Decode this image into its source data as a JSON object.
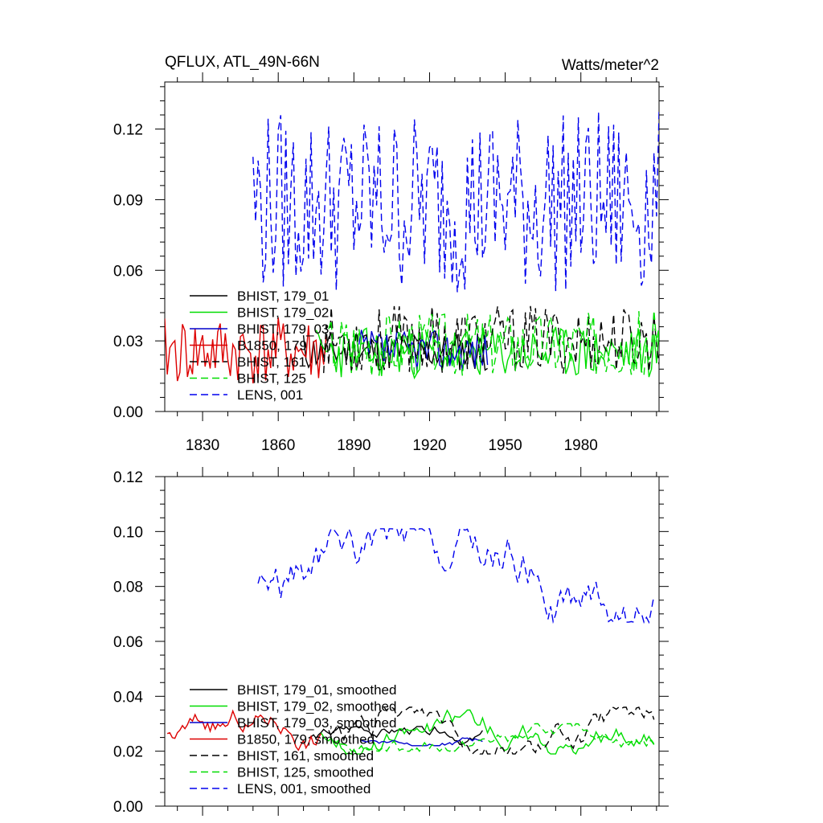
{
  "chart_data": [
    {
      "type": "line",
      "title": "QFLUX, ATL_49N-66N",
      "units": "Watts/meter^2",
      "xlabel": "",
      "ylabel": "",
      "xlim": [
        1815,
        2011
      ],
      "ylim": [
        0.0,
        0.14
      ],
      "xticks": [
        1830,
        1860,
        1890,
        1920,
        1950,
        1980
      ],
      "xtick_labels": [
        "1830",
        "1860",
        "1890",
        "1920",
        "1950",
        "1980"
      ],
      "yticks": [
        0.0,
        0.03,
        0.06,
        0.09,
        0.12
      ],
      "ytick_labels": [
        "0.00",
        "0.03",
        "0.06",
        "0.09",
        "0.12"
      ],
      "grid": false,
      "legend_position": "bottom-left",
      "series": [
        {
          "name": "BHIST, 179_01",
          "color": "#000000",
          "dash": "solid",
          "x_start": 1870,
          "x_end": 1943,
          "min": 0.017,
          "max": 0.034,
          "seed": 11
        },
        {
          "name": "BHIST, 179_02",
          "color": "#00dd00",
          "dash": "solid",
          "x_start": 1875,
          "x_end": 2011,
          "min": 0.014,
          "max": 0.036,
          "seed": 23
        },
        {
          "name": "BHIST, 179_03",
          "color": "#0000cc",
          "dash": "solid",
          "x_start": 1892,
          "x_end": 1943,
          "min": 0.017,
          "max": 0.035,
          "seed": 37
        },
        {
          "name": "B1850, 179",
          "color": "#dd0000",
          "dash": "solid",
          "x_start": 1815,
          "x_end": 1879,
          "min": 0.011,
          "max": 0.04,
          "seed": 41
        },
        {
          "name": "BHIST, 161",
          "color": "#000000",
          "dash": "dashed",
          "x_start": 1878,
          "x_end": 2011,
          "min": 0.016,
          "max": 0.045,
          "seed": 53
        },
        {
          "name": "BHIST, 125",
          "color": "#00dd00",
          "dash": "dashed",
          "x_start": 1880,
          "x_end": 2011,
          "min": 0.015,
          "max": 0.043,
          "seed": 67
        },
        {
          "name": "LENS, 001",
          "color": "#0000ee",
          "dash": "dashed",
          "x_start": 1850,
          "x_end": 2011,
          "min": 0.05,
          "max": 0.128,
          "seed": 79
        }
      ]
    },
    {
      "type": "line",
      "title": "",
      "xlabel": "",
      "ylabel": "",
      "xlim": [
        1815,
        2011
      ],
      "ylim": [
        0.0,
        0.12
      ],
      "xticks": [
        1830,
        1860,
        1890,
        1920,
        1950,
        1980
      ],
      "xtick_labels": [],
      "yticks": [
        0.0,
        0.02,
        0.04,
        0.06,
        0.08,
        0.1,
        0.12
      ],
      "ytick_labels": [
        "0.00",
        "0.02",
        "0.04",
        "0.06",
        "0.08",
        "0.10",
        "0.12"
      ],
      "grid": false,
      "legend_position": "bottom-left",
      "series": [
        {
          "name": "BHIST, 179_01, smoothed",
          "color": "#000000",
          "dash": "solid",
          "x_start": 1872,
          "x_end": 1941,
          "min": 0.021,
          "max": 0.029,
          "seed": 11
        },
        {
          "name": "BHIST, 179_02, smoothed",
          "color": "#00dd00",
          "dash": "solid",
          "x_start": 1877,
          "x_end": 2009,
          "min": 0.019,
          "max": 0.035,
          "seed": 23
        },
        {
          "name": "BHIST, 179_03, smoothed",
          "color": "#0000cc",
          "dash": "solid",
          "x_start": 1893,
          "x_end": 1941,
          "min": 0.022,
          "max": 0.027,
          "seed": 37
        },
        {
          "name": "B1850, 179, smoothed",
          "color": "#dd0000",
          "dash": "solid",
          "x_start": 1816,
          "x_end": 1877,
          "min": 0.018,
          "max": 0.035,
          "seed": 41
        },
        {
          "name": "BHIST, 161, smoothed",
          "color": "#000000",
          "dash": "dashed",
          "x_start": 1880,
          "x_end": 2009,
          "min": 0.019,
          "max": 0.036,
          "seed": 53
        },
        {
          "name": "BHIST, 125, smoothed",
          "color": "#00dd00",
          "dash": "dashed",
          "x_start": 1882,
          "x_end": 2009,
          "min": 0.02,
          "max": 0.03,
          "seed": 67
        },
        {
          "name": "LENS, 001, smoothed",
          "color": "#0000ee",
          "dash": "dashed",
          "x_start": 1852,
          "x_end": 2009,
          "min": 0.067,
          "max": 0.101,
          "seed": 79
        }
      ]
    }
  ]
}
